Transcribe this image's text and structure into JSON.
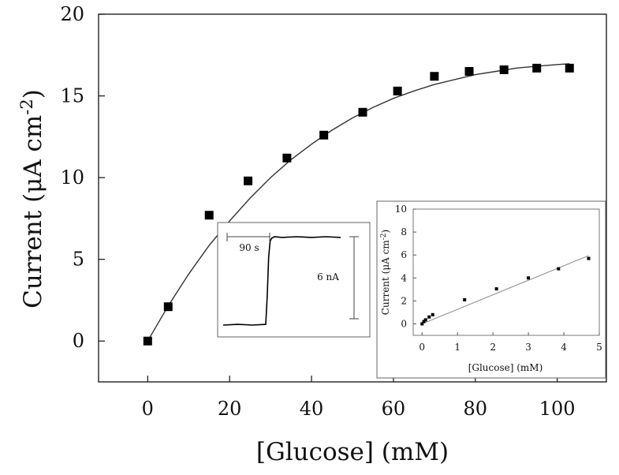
{
  "chart_data": [
    {
      "type": "scatter",
      "title": "",
      "xlabel": "[Glucose] (mM)",
      "ylabel": "Current (μA cm",
      "ylabel_superscript": "-2",
      "ylabel_suffix": ")",
      "xlim": [
        -12,
        112
      ],
      "ylim": [
        -2.5,
        20
      ],
      "xticks": [
        "0",
        "20",
        "40",
        "60",
        "80",
        "100"
      ],
      "yticks": [
        "0",
        "5",
        "10",
        "15",
        "20"
      ],
      "grid": false,
      "legend": "none",
      "series": [
        {
          "marker": "square",
          "color": "#000000",
          "x": [
            0,
            5,
            15,
            24.5,
            34,
            43,
            52.5,
            61,
            70,
            78.5,
            87,
            95,
            103
          ],
          "y": [
            0,
            2.1,
            7.7,
            9.8,
            11.2,
            12.6,
            14.0,
            15.3,
            16.2,
            16.5,
            16.6,
            16.7,
            16.7
          ]
        },
        {
          "type": "line",
          "color": "#333333",
          "x": [
            0,
            5,
            10,
            15,
            20,
            25,
            30,
            35,
            40,
            45,
            50,
            55,
            60,
            65,
            70,
            75,
            80,
            85,
            90,
            95,
            100,
            103
          ],
          "y": [
            0,
            2.15,
            4.1,
            5.85,
            7.35,
            8.75,
            10.0,
            11.1,
            12.05,
            12.9,
            13.65,
            14.3,
            14.85,
            15.3,
            15.7,
            16.0,
            16.3,
            16.5,
            16.7,
            16.82,
            16.92,
            16.97
          ]
        }
      ]
    },
    {
      "type": "line",
      "title": "",
      "annotations": [
        "90 s",
        "6 nA"
      ],
      "series": [
        {
          "color": "#000000",
          "x": [
            0,
            20,
            40,
            58,
            60,
            62,
            64,
            66,
            70,
            80,
            100,
            120,
            140,
            160
          ],
          "y": [
            0,
            0.05,
            0,
            0.05,
            2.0,
            4.6,
            5.7,
            5.9,
            6.0,
            5.95,
            6.0,
            5.95,
            6.0,
            5.95
          ]
        }
      ]
    },
    {
      "type": "scatter",
      "title": "",
      "xlabel": "[Glucose] (mM)",
      "ylabel": "Current (μA cm",
      "ylabel_superscript": "-2",
      "ylabel_suffix": ")",
      "xlim": [
        -0.25,
        5
      ],
      "ylim": [
        -1,
        10
      ],
      "xticks": [
        "0",
        "1",
        "2",
        "3",
        "4",
        "5"
      ],
      "yticks": [
        "0",
        "2",
        "4",
        "6",
        "8",
        "10"
      ],
      "grid": false,
      "legend": "none",
      "series": [
        {
          "marker": "square",
          "color": "#000000",
          "x": [
            0,
            0.05,
            0.1,
            0.2,
            0.3,
            1.2,
            2.1,
            3.0,
            3.85,
            4.7
          ],
          "y": [
            0,
            0.2,
            0.35,
            0.6,
            0.8,
            2.1,
            3.05,
            4.0,
            4.8,
            5.7
          ]
        },
        {
          "type": "line",
          "color": "#888888",
          "x": [
            0,
            4.7
          ],
          "y": [
            0,
            5.95
          ]
        }
      ]
    }
  ]
}
